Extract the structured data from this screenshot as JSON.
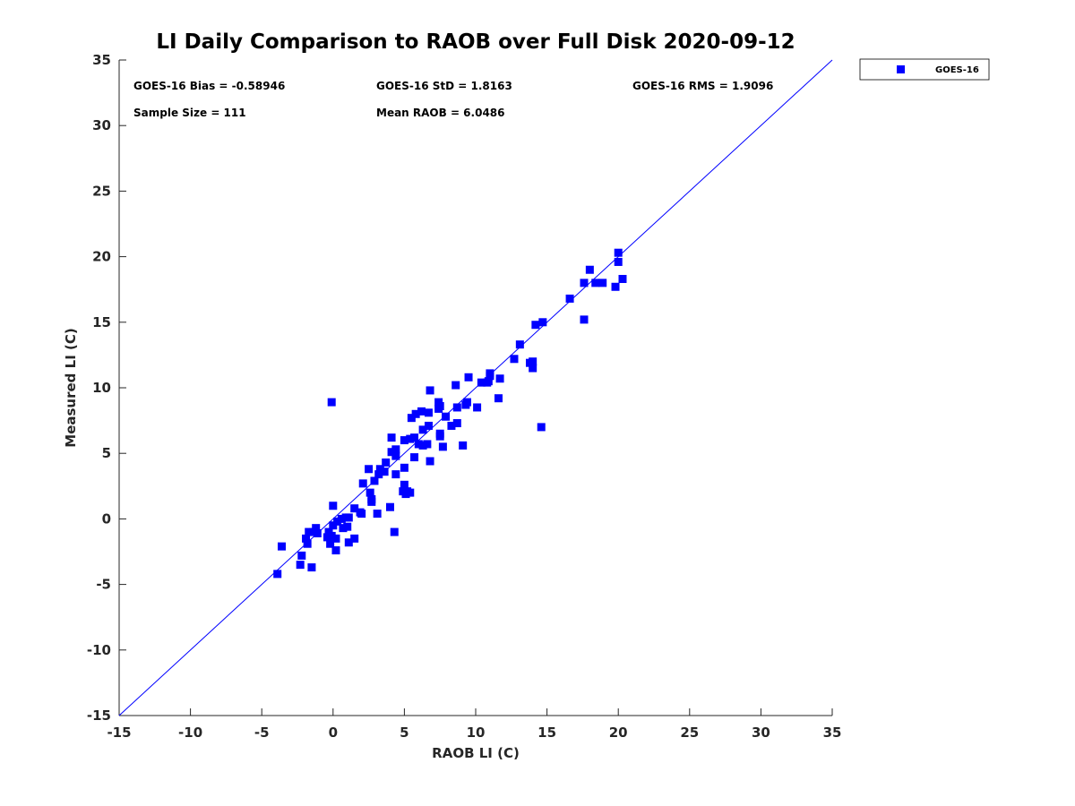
{
  "chart_data": {
    "type": "scatter",
    "title": "LI Daily Comparison to RAOB over Full Disk 2020-09-12",
    "xlabel": "RAOB LI (C)",
    "ylabel": "Measured LI (C)",
    "xlim": [
      -15,
      35
    ],
    "ylim": [
      -15,
      35
    ],
    "xticks": [
      -15,
      -10,
      -5,
      0,
      5,
      10,
      15,
      20,
      25,
      30,
      35
    ],
    "yticks": [
      -15,
      -10,
      -5,
      0,
      5,
      10,
      15,
      20,
      25,
      30,
      35
    ],
    "reference_line": {
      "from": [
        -15,
        -15
      ],
      "to": [
        35,
        35
      ],
      "color": "#0000ff"
    },
    "legend": {
      "location": "top-right outside",
      "entries": [
        "GOES-16"
      ]
    },
    "stats": {
      "bias": "GOES-16 Bias = -0.58946",
      "std": "GOES-16 StD = 1.8163",
      "rms": "GOES-16 RMS = 1.9096",
      "sample_size": "Sample Size = 111",
      "mean_raob": "Mean RAOB = 6.0486"
    },
    "series": [
      {
        "name": "GOES-16",
        "color": "#0000ff",
        "marker": "square",
        "points": [
          [
            -3.9,
            -4.2
          ],
          [
            -3.6,
            -2.1
          ],
          [
            -2.3,
            -3.5
          ],
          [
            -2.2,
            -2.8
          ],
          [
            -1.9,
            -1.5
          ],
          [
            -1.8,
            -1.9
          ],
          [
            -1.7,
            -1.0
          ],
          [
            -1.5,
            -3.7
          ],
          [
            -1.4,
            -1.0
          ],
          [
            -1.2,
            -0.7
          ],
          [
            -1.1,
            -1.1
          ],
          [
            -0.4,
            -1.4
          ],
          [
            -0.2,
            -1.9
          ],
          [
            -0.1,
            -1.3
          ],
          [
            -0.1,
            8.9
          ],
          [
            0.0,
            -0.5
          ],
          [
            0.0,
            1.0
          ],
          [
            0.2,
            -1.5
          ],
          [
            0.2,
            -2.4
          ],
          [
            0.3,
            -0.2
          ],
          [
            0.6,
            0.0
          ],
          [
            0.7,
            -0.7
          ],
          [
            0.9,
            0.1
          ],
          [
            1.0,
            -0.6
          ],
          [
            1.1,
            0.1
          ],
          [
            1.1,
            -1.8
          ],
          [
            1.5,
            0.8
          ],
          [
            1.5,
            -1.5
          ],
          [
            1.9,
            0.5
          ],
          [
            2.0,
            0.4
          ],
          [
            2.1,
            2.7
          ],
          [
            2.5,
            3.8
          ],
          [
            2.6,
            2.0
          ],
          [
            2.7,
            1.5
          ],
          [
            2.7,
            1.3
          ],
          [
            2.9,
            2.9
          ],
          [
            3.1,
            0.4
          ],
          [
            3.2,
            3.4
          ],
          [
            3.3,
            3.8
          ],
          [
            3.6,
            3.6
          ],
          [
            3.7,
            4.3
          ],
          [
            4.0,
            0.9
          ],
          [
            4.1,
            6.2
          ],
          [
            4.1,
            5.1
          ],
          [
            4.3,
            -1.0
          ],
          [
            4.4,
            3.4
          ],
          [
            4.4,
            4.8
          ],
          [
            4.4,
            5.3
          ],
          [
            4.9,
            2.1
          ],
          [
            5.0,
            2.6
          ],
          [
            5.0,
            3.9
          ],
          [
            5.0,
            6.0
          ],
          [
            5.1,
            1.9
          ],
          [
            5.2,
            2.1
          ],
          [
            5.4,
            6.1
          ],
          [
            5.4,
            2.0
          ],
          [
            5.5,
            7.7
          ],
          [
            5.7,
            4.7
          ],
          [
            5.7,
            6.2
          ],
          [
            5.8,
            8.0
          ],
          [
            6.0,
            5.7
          ],
          [
            6.2,
            8.2
          ],
          [
            6.3,
            6.8
          ],
          [
            6.3,
            5.6
          ],
          [
            6.6,
            5.7
          ],
          [
            6.7,
            7.1
          ],
          [
            6.7,
            8.1
          ],
          [
            6.8,
            4.4
          ],
          [
            6.8,
            9.8
          ],
          [
            7.4,
            8.4
          ],
          [
            7.4,
            8.9
          ],
          [
            7.5,
            6.5
          ],
          [
            7.5,
            6.3
          ],
          [
            7.5,
            8.6
          ],
          [
            7.7,
            5.5
          ],
          [
            7.9,
            7.8
          ],
          [
            8.3,
            7.1
          ],
          [
            8.6,
            10.2
          ],
          [
            8.7,
            8.5
          ],
          [
            8.7,
            7.3
          ],
          [
            9.1,
            5.6
          ],
          [
            9.3,
            8.7
          ],
          [
            9.4,
            8.9
          ],
          [
            9.5,
            10.8
          ],
          [
            10.1,
            8.5
          ],
          [
            10.4,
            10.4
          ],
          [
            10.8,
            10.4
          ],
          [
            10.9,
            10.5
          ],
          [
            11.0,
            10.9
          ],
          [
            11.0,
            11.1
          ],
          [
            11.6,
            9.2
          ],
          [
            11.7,
            10.7
          ],
          [
            12.7,
            12.2
          ],
          [
            13.1,
            13.3
          ],
          [
            13.8,
            11.9
          ],
          [
            14.0,
            11.5
          ],
          [
            14.0,
            12.0
          ],
          [
            14.2,
            14.8
          ],
          [
            14.6,
            7.0
          ],
          [
            14.7,
            15.0
          ],
          [
            16.6,
            16.8
          ],
          [
            17.6,
            15.2
          ],
          [
            17.6,
            18.0
          ],
          [
            18.0,
            19.0
          ],
          [
            18.4,
            18.0
          ],
          [
            18.9,
            18.0
          ],
          [
            19.8,
            17.7
          ],
          [
            20.0,
            20.3
          ],
          [
            20.0,
            19.6
          ],
          [
            20.3,
            18.3
          ],
          [
            -0.3,
            -1.0
          ]
        ]
      }
    ]
  }
}
